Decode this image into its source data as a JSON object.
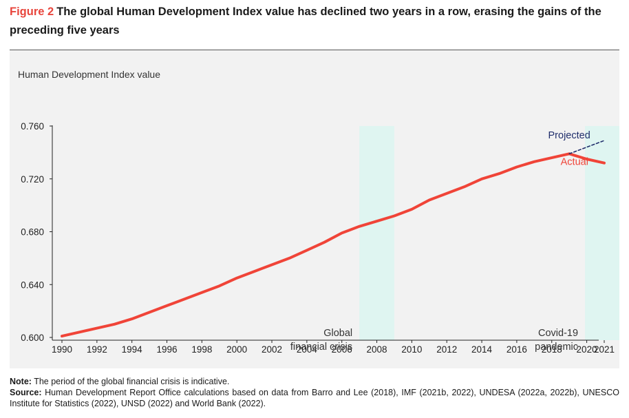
{
  "figure": {
    "label": "Figure 2",
    "title": "The global Human Development Index value has declined two years in a row, erasing the gains of the preceding five years"
  },
  "chart_data": {
    "type": "line",
    "ylabel": "Human Development Index value",
    "xlabel": "",
    "xlim": [
      1990,
      2021
    ],
    "ylim": [
      0.6,
      0.76
    ],
    "x_ticks": [
      1990,
      1992,
      1994,
      1996,
      1998,
      2000,
      2002,
      2004,
      2006,
      2008,
      2010,
      2012,
      2014,
      2016,
      2018,
      2020,
      2021
    ],
    "y_ticks": [
      "0.600",
      "0.640",
      "0.680",
      "0.720",
      "0.760"
    ],
    "grid": false,
    "series": [
      {
        "name": "Actual",
        "color": "#f04438",
        "style": "solid",
        "x": [
          1990,
          1991,
          1992,
          1993,
          1994,
          1995,
          1996,
          1997,
          1998,
          1999,
          2000,
          2001,
          2002,
          2003,
          2004,
          2005,
          2006,
          2007,
          2008,
          2009,
          2010,
          2011,
          2012,
          2013,
          2014,
          2015,
          2016,
          2017,
          2018,
          2019,
          2020,
          2021
        ],
        "values": [
          0.601,
          0.604,
          0.607,
          0.61,
          0.614,
          0.619,
          0.624,
          0.629,
          0.634,
          0.639,
          0.645,
          0.65,
          0.655,
          0.66,
          0.666,
          0.672,
          0.679,
          0.684,
          0.688,
          0.692,
          0.697,
          0.704,
          0.709,
          0.714,
          0.72,
          0.724,
          0.729,
          0.733,
          0.736,
          0.739,
          0.735,
          0.732
        ]
      },
      {
        "name": "Projected",
        "color": "#1f2d6b",
        "style": "dashed",
        "x": [
          2019,
          2020,
          2021
        ],
        "values": [
          0.739,
          0.744,
          0.749
        ]
      }
    ],
    "shaded_periods": [
      {
        "start": 2007.0,
        "end": 2009.0,
        "label_lines": [
          "Global",
          "financial crisis"
        ],
        "color": "#dff5f1"
      },
      {
        "start": 2019.9,
        "end": 2021.9,
        "label_lines": [
          "Covid-19",
          "pandemic"
        ],
        "color": "#dff5f1"
      }
    ],
    "annotations": [
      {
        "text": "Projected",
        "x": 2019.0,
        "y": 0.7505,
        "color": "#1f2d6b"
      },
      {
        "text": "Actual",
        "x": 2019.3,
        "y": 0.7305,
        "color": "#f04438"
      }
    ]
  },
  "notes": {
    "note_label": "Note:",
    "note_text": "The period of the global financial crisis is indicative.",
    "source_label": "Source:",
    "source_text": "Human Development Report Office calculations based on data from Barro and Lee (2018), IMF (2021b, 2022), UNDESA (2022a, 2022b), UNESCO Institute for Statistics (2022), UNSD (2022) and World Bank (2022)."
  }
}
